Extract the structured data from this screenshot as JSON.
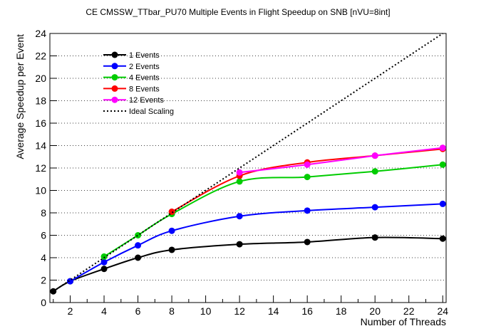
{
  "chart_data": {
    "type": "line",
    "title": "CE CMSSW_TTbar_PU70 Multiple Events in Flight Speedup on SNB [nVU=8int]",
    "xlabel": "Number of Threads",
    "ylabel": "Average Speedup per Event",
    "xlim": [
      0.8,
      24.2
    ],
    "ylim": [
      0,
      24
    ],
    "x_ticks": [
      2,
      4,
      6,
      8,
      10,
      12,
      14,
      16,
      18,
      20,
      22,
      24
    ],
    "y_ticks": [
      0,
      2,
      4,
      6,
      8,
      10,
      12,
      14,
      16,
      18,
      20,
      22,
      24
    ],
    "grid": "horizontal dotted",
    "legend_position": "top-left",
    "series": [
      {
        "name": "1 Events",
        "color": "#000000",
        "marker": "circle",
        "x": [
          1,
          2,
          4,
          6,
          8,
          12,
          16,
          20,
          24
        ],
        "y": [
          1.0,
          1.9,
          3.0,
          4.0,
          4.7,
          5.2,
          5.4,
          5.8,
          5.7
        ]
      },
      {
        "name": "2 Events",
        "color": "#0000ff",
        "marker": "circle",
        "x": [
          2,
          4,
          6,
          8,
          12,
          16,
          20,
          24
        ],
        "y": [
          1.9,
          3.6,
          5.1,
          6.4,
          7.7,
          8.2,
          8.5,
          8.8
        ]
      },
      {
        "name": "4 Events",
        "color": "#00cc00",
        "marker": "circle",
        "x": [
          4,
          6,
          8,
          12,
          16,
          20,
          24
        ],
        "y": [
          4.1,
          6.0,
          7.9,
          10.8,
          11.2,
          11.7,
          12.3
        ]
      },
      {
        "name": "8 Events",
        "color": "#ff0000",
        "marker": "circle",
        "x": [
          8,
          12,
          16,
          20,
          24
        ],
        "y": [
          8.1,
          11.3,
          12.5,
          13.1,
          13.7
        ]
      },
      {
        "name": "12 Events",
        "color": "#ff00ff",
        "marker": "circle",
        "x": [
          12,
          16,
          20,
          24
        ],
        "y": [
          11.6,
          12.3,
          13.1,
          13.8
        ]
      },
      {
        "name": "Ideal Scaling",
        "color": "#000000",
        "style": "dotted",
        "x": [
          1,
          24
        ],
        "y": [
          1,
          24
        ]
      }
    ]
  }
}
